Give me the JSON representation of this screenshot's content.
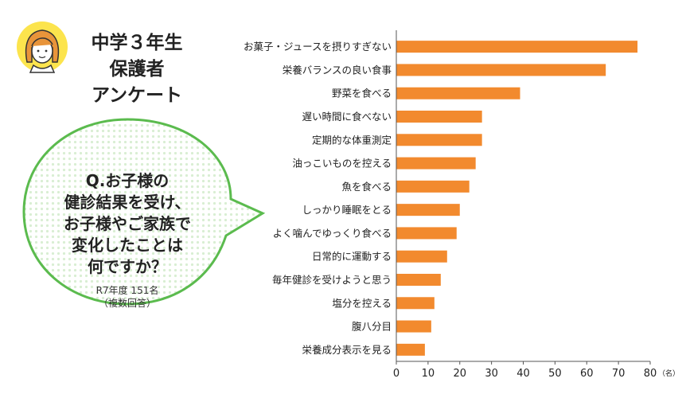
{
  "header": {
    "title_lines": [
      "中学３年生",
      "保護者",
      "アンケート"
    ]
  },
  "question": {
    "lines": [
      "Q.お子様の",
      "健診結果を受け、",
      "お子様やご家族で",
      "変化したことは",
      "何ですか？"
    ],
    "note_lines": [
      "R7年度 151名",
      "（複数回答）"
    ]
  },
  "colors": {
    "bar": "#f28a2e",
    "bubble_border": "#5bbb4e",
    "bubble_dots": "#d9eed3",
    "avatar_bg": "#fce44d",
    "hair": "#e8943a"
  },
  "icons": {
    "avatar": "woman-face-icon"
  },
  "chart_data": {
    "type": "bar",
    "orientation": "horizontal",
    "categories": [
      "お菓子・ジュースを摂りすぎない",
      "栄養バランスの良い食事",
      "野菜を食べる",
      "遅い時間に食べない",
      "定期的な体重測定",
      "油っこいものを控える",
      "魚を食べる",
      "しっかり睡眠をとる",
      "よく噛んでゆっくり食べる",
      "日常的に運動する",
      "毎年健診を受けようと思う",
      "塩分を控える",
      "腹八分目",
      "栄養成分表示を見る"
    ],
    "values": [
      76,
      66,
      39,
      27,
      27,
      25,
      23,
      20,
      19,
      16,
      14,
      12,
      11,
      9
    ],
    "xlim": [
      0,
      80
    ],
    "xticks": [
      "0",
      "10",
      "20",
      "30",
      "40",
      "50",
      "60",
      "70",
      "80"
    ],
    "unit": "（名）",
    "grid": false
  }
}
